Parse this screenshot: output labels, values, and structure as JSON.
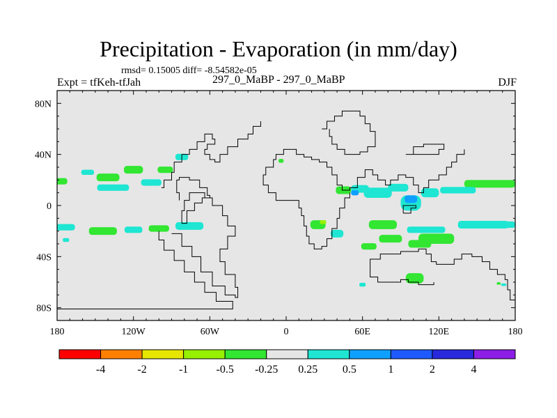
{
  "header": {
    "title": "Precipitation - Evaporation (in mm/day)",
    "stats": "rmsd= 0.15005 diff= -8.54582e-05",
    "expt": "Expt = tfKeh-tfJah",
    "runs": "297_0_MaBP - 297_0_MaBP",
    "season": "DJF"
  },
  "chart_data": {
    "type": "heatmap",
    "title": "Precipitation - Evaporation (in mm/day)",
    "xlim": [
      -180,
      180
    ],
    "ylim": [
      -90,
      90
    ],
    "x_ticks": [
      {
        "value": -180,
        "label": "180"
      },
      {
        "value": -120,
        "label": "120W"
      },
      {
        "value": -60,
        "label": "60W"
      },
      {
        "value": 0,
        "label": "0"
      },
      {
        "value": 60,
        "label": "60E"
      },
      {
        "value": 120,
        "label": "120E"
      },
      {
        "value": 180,
        "label": "180"
      }
    ],
    "y_ticks": [
      {
        "value": 80,
        "label": "80N"
      },
      {
        "value": 40,
        "label": "40N"
      },
      {
        "value": 0,
        "label": "0"
      },
      {
        "value": -40,
        "label": "40S"
      },
      {
        "value": -80,
        "label": "80S"
      }
    ],
    "background_color": "#e6e6e6",
    "colorbar": {
      "colors": [
        "#ff0000",
        "#ff8000",
        "#e6e600",
        "#96f000",
        "#32e632",
        "#e6e6e6",
        "#1ee6d2",
        "#0fa0ff",
        "#1e5aff",
        "#2828dc",
        "#8c1ee6"
      ],
      "labels": [
        "-4",
        "-2",
        "-1",
        "-0.5",
        "-0.25",
        "0.25",
        "0.5",
        "1",
        "2",
        "4"
      ]
    },
    "anomalies": [
      {
        "lon": -178,
        "lat": 19,
        "w": 12,
        "h": 5,
        "color": "#32e632"
      },
      {
        "lon": -156,
        "lat": 26,
        "w": 10,
        "h": 4,
        "color": "#1ee6d2"
      },
      {
        "lon": -140,
        "lat": 22,
        "w": 18,
        "h": 6,
        "color": "#32e632"
      },
      {
        "lon": -120,
        "lat": 28,
        "w": 15,
        "h": 6,
        "color": "#32e632"
      },
      {
        "lon": -95,
        "lat": 28,
        "w": 12,
        "h": 5,
        "color": "#32e632"
      },
      {
        "lon": -82,
        "lat": 38,
        "w": 10,
        "h": 5,
        "color": "#1ee6d2"
      },
      {
        "lon": -136,
        "lat": 14,
        "w": 25,
        "h": 5,
        "color": "#1ee6d2"
      },
      {
        "lon": -106,
        "lat": 18,
        "w": 16,
        "h": 5,
        "color": "#1ee6d2"
      },
      {
        "lon": -175,
        "lat": -17,
        "w": 18,
        "h": 5,
        "color": "#1ee6d2"
      },
      {
        "lon": -144,
        "lat": -20,
        "w": 22,
        "h": 6,
        "color": "#32e632"
      },
      {
        "lon": -120,
        "lat": -19,
        "w": 14,
        "h": 5,
        "color": "#1ee6d2"
      },
      {
        "lon": -100,
        "lat": -18,
        "w": 16,
        "h": 5,
        "color": "#32e632"
      },
      {
        "lon": -76,
        "lat": -16,
        "w": 22,
        "h": 6,
        "color": "#1ee6d2"
      },
      {
        "lon": -173,
        "lat": -27,
        "w": 5,
        "h": 3,
        "color": "#1ee6d2"
      },
      {
        "lon": 25,
        "lat": -15,
        "w": 12,
        "h": 7,
        "color": "#32e632"
      },
      {
        "lon": 29,
        "lat": -13,
        "w": 5,
        "h": 3,
        "color": "#96f000"
      },
      {
        "lon": 40,
        "lat": -22,
        "w": 10,
        "h": 6,
        "color": "#1ee6d2"
      },
      {
        "lon": -4,
        "lat": 35,
        "w": 4,
        "h": 3,
        "color": "#32e632"
      },
      {
        "lon": 45,
        "lat": 12,
        "w": 12,
        "h": 6,
        "color": "#32e632"
      },
      {
        "lon": 58,
        "lat": 13,
        "w": 14,
        "h": 6,
        "color": "#1ee6d2"
      },
      {
        "lon": 72,
        "lat": 10,
        "w": 22,
        "h": 8,
        "color": "#1ee6d2"
      },
      {
        "lon": 88,
        "lat": 14,
        "w": 16,
        "h": 6,
        "color": "#1ee6d2"
      },
      {
        "lon": 98,
        "lat": 2,
        "w": 16,
        "h": 12,
        "color": "#1ee6d2"
      },
      {
        "lon": 98,
        "lat": 5,
        "w": 10,
        "h": 6,
        "color": "#0fa0ff"
      },
      {
        "lon": 113,
        "lat": 10,
        "w": 14,
        "h": 7,
        "color": "#1ee6d2"
      },
      {
        "lon": 54,
        "lat": 10,
        "w": 6,
        "h": 4,
        "color": "#0fa0ff"
      },
      {
        "lon": 160,
        "lat": 17,
        "w": 40,
        "h": 6,
        "color": "#32e632"
      },
      {
        "lon": 135,
        "lat": 12,
        "w": 28,
        "h": 5,
        "color": "#1ee6d2"
      },
      {
        "lon": 76,
        "lat": -15,
        "w": 22,
        "h": 7,
        "color": "#32e632"
      },
      {
        "lon": 82,
        "lat": -26,
        "w": 18,
        "h": 6,
        "color": "#32e632"
      },
      {
        "lon": 65,
        "lat": -32,
        "w": 12,
        "h": 5,
        "color": "#32e632"
      },
      {
        "lon": 118,
        "lat": -26,
        "w": 28,
        "h": 8,
        "color": "#32e632"
      },
      {
        "lon": 105,
        "lat": -30,
        "w": 18,
        "h": 6,
        "color": "#32e632"
      },
      {
        "lon": 110,
        "lat": -19,
        "w": 30,
        "h": 5,
        "color": "#1ee6d2"
      },
      {
        "lon": 155,
        "lat": -15,
        "w": 40,
        "h": 6,
        "color": "#1ee6d2"
      },
      {
        "lon": 176,
        "lat": -15,
        "w": 8,
        "h": 5,
        "color": "#1ee6d2"
      },
      {
        "lon": 101,
        "lat": -57,
        "w": 14,
        "h": 8,
        "color": "#32e632"
      },
      {
        "lon": 60,
        "lat": -62,
        "w": 5,
        "h": 3,
        "color": "#1ee6d2"
      },
      {
        "lon": 167,
        "lat": -61,
        "w": 3,
        "h": 2,
        "color": "#32e632"
      },
      {
        "lon": 171,
        "lat": -62,
        "w": 4,
        "h": 2,
        "color": "#1ee6d2"
      }
    ],
    "coastlines": [
      [
        [
          -180,
          -81
        ],
        [
          -42,
          -81
        ],
        [
          -42,
          -75
        ],
        [
          -55,
          -75
        ],
        [
          -55,
          -68
        ],
        [
          -64,
          -68
        ],
        [
          -64,
          -60
        ],
        [
          -72,
          -60
        ],
        [
          -72,
          -52
        ],
        [
          -80,
          -52
        ],
        [
          -80,
          -43
        ],
        [
          -88,
          -43
        ],
        [
          -88,
          -35
        ],
        [
          -96,
          -35
        ],
        [
          -96,
          -27
        ],
        [
          -100,
          -27
        ],
        [
          -100,
          -20
        ]
      ],
      [
        [
          -90,
          -22
        ],
        [
          -82,
          -32
        ],
        [
          -74,
          -40
        ],
        [
          -67,
          -52
        ],
        [
          -58,
          -63
        ],
        [
          -48,
          -70
        ],
        [
          -40,
          -72
        ],
        [
          -38,
          -64
        ],
        [
          -40,
          -54
        ],
        [
          -48,
          -44
        ],
        [
          -52,
          -34
        ],
        [
          -46,
          -24
        ],
        [
          -40,
          -16
        ],
        [
          -46,
          -8
        ],
        [
          -50,
          0
        ],
        [
          -58,
          6
        ],
        [
          -64,
          10
        ],
        [
          -72,
          10
        ],
        [
          -76,
          4
        ],
        [
          -80,
          -4
        ],
        [
          -82,
          -14
        ]
      ],
      [
        [
          -82,
          -14
        ],
        [
          -78,
          -4
        ],
        [
          -72,
          2
        ],
        [
          -66,
          6
        ],
        [
          -60,
          8
        ],
        [
          -62,
          14
        ],
        [
          -68,
          20
        ],
        [
          -76,
          22
        ],
        [
          -84,
          20
        ],
        [
          -86,
          10
        ],
        [
          -84,
          4
        ]
      ],
      [
        [
          -98,
          14
        ],
        [
          -96,
          20
        ],
        [
          -90,
          26
        ],
        [
          -88,
          34
        ],
        [
          -82,
          40
        ],
        [
          -76,
          44
        ],
        [
          -70,
          50
        ],
        [
          -64,
          56
        ],
        [
          -58,
          52
        ],
        [
          -56,
          48
        ],
        [
          -62,
          44
        ],
        [
          -64,
          40
        ],
        [
          -60,
          36
        ],
        [
          -56,
          34
        ],
        [
          -52,
          40
        ],
        [
          -46,
          46
        ],
        [
          -38,
          52
        ],
        [
          -30,
          56
        ],
        [
          -26,
          62
        ],
        [
          -20,
          66
        ]
      ],
      [
        [
          4,
          44
        ],
        [
          8,
          40
        ],
        [
          14,
          38
        ],
        [
          20,
          36
        ],
        [
          26,
          34
        ],
        [
          32,
          30
        ],
        [
          36,
          24
        ],
        [
          40,
          16
        ],
        [
          44,
          12
        ],
        [
          50,
          14
        ],
        [
          56,
          22
        ],
        [
          62,
          28
        ],
        [
          68,
          24
        ],
        [
          72,
          20
        ],
        [
          78,
          16
        ],
        [
          82,
          20
        ],
        [
          88,
          24
        ],
        [
          94,
          22
        ],
        [
          100,
          16
        ],
        [
          104,
          10
        ],
        [
          108,
          14
        ],
        [
          112,
          20
        ],
        [
          120,
          24
        ],
        [
          126,
          30
        ],
        [
          130,
          34
        ],
        [
          134,
          40
        ],
        [
          140,
          44
        ]
      ],
      [
        [
          4,
          44
        ],
        [
          -2,
          40
        ],
        [
          -8,
          36
        ],
        [
          -10,
          30
        ],
        [
          -16,
          24
        ],
        [
          -18,
          16
        ],
        [
          -14,
          10
        ],
        [
          -8,
          4
        ],
        [
          0,
          4
        ],
        [
          8,
          4
        ],
        [
          10,
          -2
        ],
        [
          12,
          -8
        ],
        [
          14,
          -16
        ],
        [
          16,
          -24
        ],
        [
          18,
          -30
        ],
        [
          22,
          -34
        ],
        [
          28,
          -32
        ],
        [
          32,
          -26
        ],
        [
          36,
          -18
        ],
        [
          40,
          -10
        ],
        [
          42,
          -2
        ],
        [
          46,
          6
        ],
        [
          50,
          10
        ]
      ],
      [
        [
          28,
          60
        ],
        [
          32,
          66
        ],
        [
          38,
          70
        ],
        [
          44,
          74
        ],
        [
          52,
          74
        ],
        [
          58,
          70
        ],
        [
          62,
          64
        ],
        [
          66,
          58
        ],
        [
          70,
          52
        ],
        [
          70,
          46
        ],
        [
          64,
          42
        ],
        [
          58,
          40
        ],
        [
          52,
          40
        ],
        [
          46,
          44
        ],
        [
          40,
          48
        ],
        [
          36,
          54
        ],
        [
          34,
          60
        ]
      ],
      [
        [
          94,
          40
        ],
        [
          100,
          46
        ],
        [
          108,
          48
        ],
        [
          116,
          48
        ],
        [
          124,
          44
        ],
        [
          120,
          40
        ],
        [
          110,
          40
        ],
        [
          100,
          40
        ]
      ],
      [
        [
          70,
          -42
        ],
        [
          74,
          -38
        ],
        [
          82,
          -38
        ],
        [
          90,
          -36
        ],
        [
          98,
          -36
        ],
        [
          104,
          -34
        ],
        [
          110,
          -38
        ],
        [
          114,
          -44
        ],
        [
          118,
          -46
        ],
        [
          126,
          -46
        ],
        [
          132,
          -42
        ],
        [
          138,
          -38
        ],
        [
          146,
          -40
        ],
        [
          154,
          -44
        ],
        [
          160,
          -50
        ],
        [
          166,
          -54
        ],
        [
          172,
          -58
        ],
        [
          174,
          -66
        ],
        [
          176,
          -74
        ],
        [
          180,
          -82
        ]
      ],
      [
        [
          70,
          -42
        ],
        [
          66,
          -48
        ],
        [
          66,
          -56
        ],
        [
          72,
          -60
        ],
        [
          82,
          -60
        ],
        [
          90,
          -58
        ],
        [
          96,
          -60
        ],
        [
          104,
          -62
        ],
        [
          116,
          -60
        ]
      ],
      [
        [
          92,
          -6
        ],
        [
          98,
          -6
        ],
        [
          98,
          -2
        ],
        [
          102,
          -2
        ],
        [
          102,
          0
        ],
        [
          96,
          0
        ],
        [
          92,
          -2
        ],
        [
          92,
          -6
        ]
      ]
    ]
  }
}
